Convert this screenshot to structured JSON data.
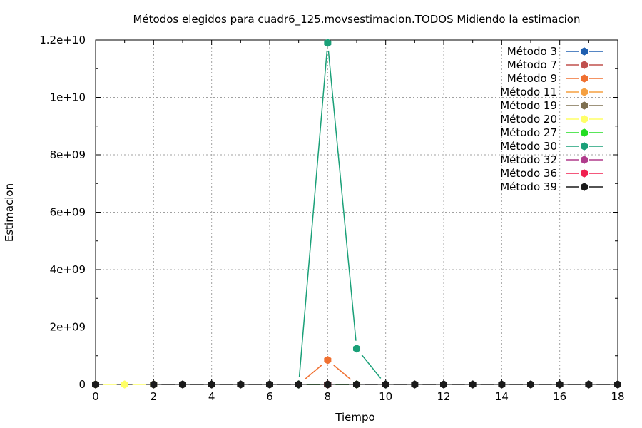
{
  "chart_data": {
    "type": "line",
    "title": "Métodos elegidos para cuadr6_125.movsestimacion.TODOS Midiendo la estimacion",
    "xlabel": "Tiempo",
    "ylabel": "Estimacion",
    "xlim": [
      0,
      18
    ],
    "ylim": [
      0,
      12000000000
    ],
    "xticks": [
      "0",
      "2",
      "4",
      "6",
      "8",
      "10",
      "12",
      "14",
      "16",
      "18"
    ],
    "yticks": [
      "0",
      "2e+09",
      "4e+09",
      "6e+09",
      "8e+09",
      "1e+10",
      "1.2e+10"
    ],
    "grid": true,
    "legend_position": "top-right",
    "series": [
      {
        "name": "Método 3",
        "color": "#1f5fb0",
        "x": [
          8
        ],
        "y": [
          0
        ]
      },
      {
        "name": "Método 7",
        "color": "#c0504d",
        "x": [
          8
        ],
        "y": [
          0
        ]
      },
      {
        "name": "Método 9",
        "color": "#f07030",
        "x": [
          7,
          8,
          9
        ],
        "y": [
          0,
          850000000,
          0
        ]
      },
      {
        "name": "Método 11",
        "color": "#f5a040",
        "x": [
          8
        ],
        "y": [
          0
        ]
      },
      {
        "name": "Método 19",
        "color": "#7f7050",
        "x": [
          8
        ],
        "y": [
          0
        ]
      },
      {
        "name": "Método 20",
        "color": "#ffff66",
        "x": [
          0,
          1,
          2
        ],
        "y": [
          0,
          0,
          0
        ]
      },
      {
        "name": "Método 27",
        "color": "#22dd22",
        "x": [
          7,
          8,
          9
        ],
        "y": [
          0,
          0,
          0
        ]
      },
      {
        "name": "Método 30",
        "color": "#1aa078",
        "x": [
          7,
          8,
          9,
          10
        ],
        "y": [
          0,
          11900000000,
          1250000000,
          0
        ]
      },
      {
        "name": "Método 32",
        "color": "#b03c8c",
        "x": [
          8
        ],
        "y": [
          0
        ]
      },
      {
        "name": "Método 36",
        "color": "#f02050",
        "x": [
          8
        ],
        "y": [
          0
        ]
      },
      {
        "name": "Método 39",
        "color": "#1a1a1a",
        "x": [
          0,
          2,
          3,
          4,
          5,
          6,
          7,
          8,
          9,
          10,
          11,
          12,
          13,
          14,
          15,
          16,
          17,
          18
        ],
        "y": [
          0,
          0,
          0,
          0,
          0,
          0,
          0,
          0,
          0,
          0,
          0,
          0,
          0,
          0,
          0,
          0,
          0,
          0
        ]
      }
    ]
  }
}
